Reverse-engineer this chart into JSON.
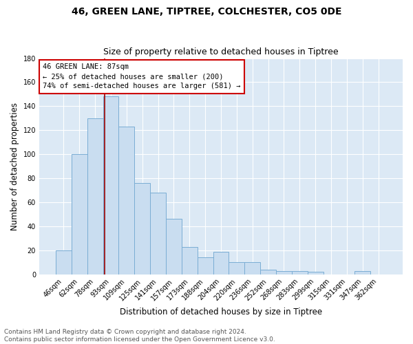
{
  "title": "46, GREEN LANE, TIPTREE, COLCHESTER, CO5 0DE",
  "subtitle": "Size of property relative to detached houses in Tiptree",
  "xlabel": "Distribution of detached houses by size in Tiptree",
  "ylabel": "Number of detached properties",
  "bar_labels": [
    "46sqm",
    "62sqm",
    "78sqm",
    "93sqm",
    "109sqm",
    "125sqm",
    "141sqm",
    "157sqm",
    "173sqm",
    "188sqm",
    "204sqm",
    "220sqm",
    "236sqm",
    "252sqm",
    "268sqm",
    "283sqm",
    "299sqm",
    "315sqm",
    "331sqm",
    "347sqm",
    "362sqm"
  ],
  "bar_values": [
    20,
    100,
    130,
    148,
    123,
    76,
    68,
    46,
    23,
    14,
    19,
    10,
    10,
    4,
    3,
    3,
    2,
    0,
    0,
    3,
    0
  ],
  "bar_color": "#c9ddf0",
  "bar_edge_color": "#7aadd4",
  "background_color": "#dce9f5",
  "fig_background_color": "#ffffff",
  "grid_color": "#ffffff",
  "annotation_text": "46 GREEN LANE: 87sqm\n← 25% of detached houses are smaller (200)\n74% of semi-detached houses are larger (581) →",
  "annotation_box_color": "#ffffff",
  "annotation_box_edge": "#cc0000",
  "vline_color": "#990000",
  "ylim": [
    0,
    180
  ],
  "yticks": [
    0,
    20,
    40,
    60,
    80,
    100,
    120,
    140,
    160,
    180
  ],
  "footer_text": "Contains HM Land Registry data © Crown copyright and database right 2024.\nContains public sector information licensed under the Open Government Licence v3.0.",
  "title_fontsize": 10,
  "subtitle_fontsize": 9,
  "tick_fontsize": 7,
  "ylabel_fontsize": 8.5,
  "xlabel_fontsize": 8.5,
  "annotation_fontsize": 7.5,
  "footer_fontsize": 6.5
}
